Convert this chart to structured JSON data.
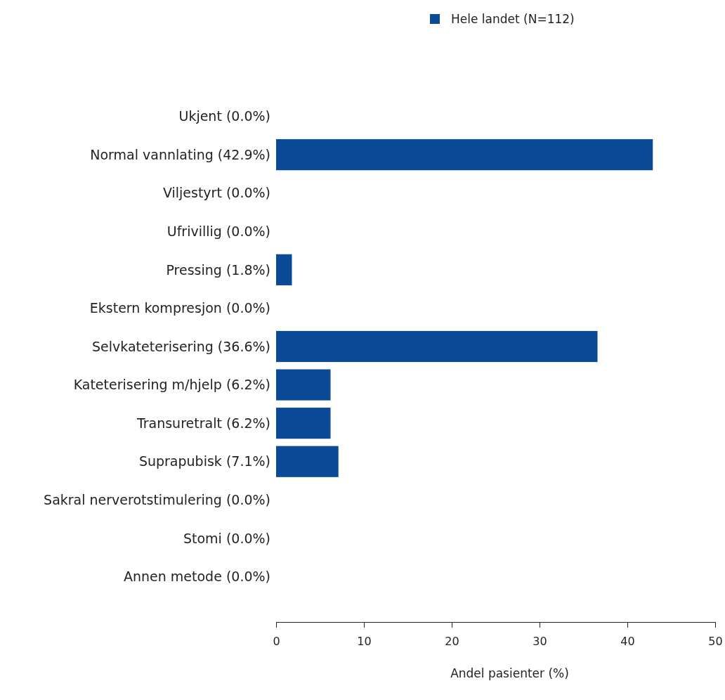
{
  "chart_data": {
    "type": "bar",
    "orientation": "horizontal",
    "xlabel": "Andel pasienter (%)",
    "categories": [
      "Ukjent (0.0%)",
      "Normal vannlating (42.9%)",
      "Viljestyrt (0.0%)",
      "Ufrivillig (0.0%)",
      "Pressing (1.8%)",
      "Ekstern kompresjon (0.0%)",
      "Selvkateterisering (36.6%)",
      "Kateterisering m/hjelp (6.2%)",
      "Transuretralt (6.2%)",
      "Suprapubisk (7.1%)",
      "Sakral nerverotstimulering (0.0%)",
      "Stomi (0.0%)",
      "Annen metode (0.0%)"
    ],
    "series": [
      {
        "name": "Hele landet (N=112)",
        "color": "#0a4a97",
        "values": [
          0,
          42.9,
          0,
          0,
          1.8,
          0,
          36.6,
          6.2,
          6.2,
          7.1,
          0,
          0,
          0
        ]
      }
    ],
    "xlim": [
      0,
      50
    ],
    "xticks": [
      0,
      10,
      20,
      30,
      40,
      50
    ],
    "legend": "top right"
  }
}
